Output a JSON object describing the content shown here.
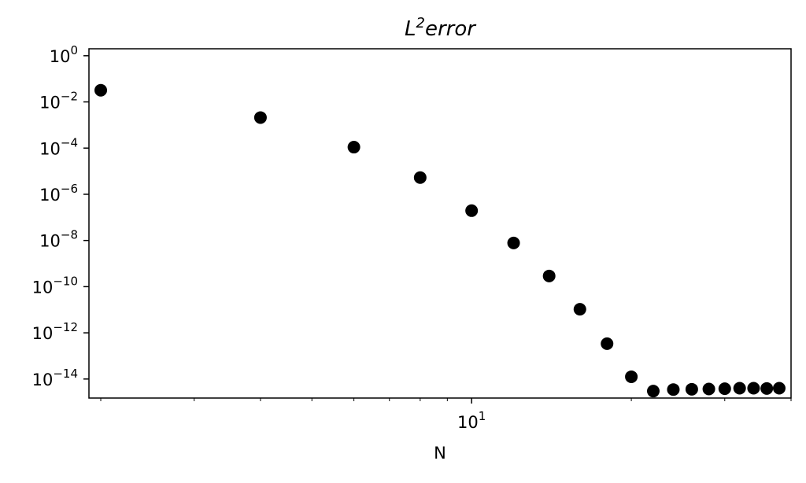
{
  "chart_data": {
    "type": "scatter",
    "title": {
      "base": "L",
      "sup": "2",
      "rest": "error"
    },
    "xlabel": "N",
    "ylabel": "",
    "xscale": "log",
    "yscale": "log",
    "xlim": [
      1.9,
      40
    ],
    "ylim": [
      1.5e-15,
      2.0
    ],
    "x_ticks_major": [
      {
        "value": 10,
        "base": "10",
        "exp": "1"
      }
    ],
    "y_ticks": [
      {
        "value": 1,
        "base": "10",
        "exp": "0"
      },
      {
        "value": 0.01,
        "base": "10",
        "exp": "−2"
      },
      {
        "value": 0.0001,
        "base": "10",
        "exp": "−4"
      },
      {
        "value": 1e-06,
        "base": "10",
        "exp": "−6"
      },
      {
        "value": 1e-08,
        "base": "10",
        "exp": "−8"
      },
      {
        "value": 1e-10,
        "base": "10",
        "exp": "−10"
      },
      {
        "value": 1e-12,
        "base": "10",
        "exp": "−12"
      },
      {
        "value": 1e-14,
        "base": "10",
        "exp": "−14"
      }
    ],
    "grid": false,
    "legend": "none",
    "series": [
      {
        "color": "#000000",
        "marker": "circle",
        "points": [
          {
            "x": 2,
            "y": 0.032
          },
          {
            "x": 4,
            "y": 0.0021
          },
          {
            "x": 6,
            "y": 0.00011
          },
          {
            "x": 8,
            "y": 5.3e-06
          },
          {
            "x": 10,
            "y": 1.95e-07
          },
          {
            "x": 12,
            "y": 7.8e-09
          },
          {
            "x": 14,
            "y": 2.9e-10
          },
          {
            "x": 16,
            "y": 1.05e-11
          },
          {
            "x": 18,
            "y": 3.4e-13
          },
          {
            "x": 20,
            "y": 1.25e-14
          },
          {
            "x": 22,
            "y": 3e-15
          },
          {
            "x": 24,
            "y": 3.5e-15
          },
          {
            "x": 26,
            "y": 3.6e-15
          },
          {
            "x": 28,
            "y": 3.7e-15
          },
          {
            "x": 30,
            "y": 3.8e-15
          },
          {
            "x": 32,
            "y": 4e-15
          },
          {
            "x": 34,
            "y": 4e-15
          },
          {
            "x": 36,
            "y": 3.9e-15
          },
          {
            "x": 38,
            "y": 4e-15
          }
        ]
      }
    ]
  }
}
